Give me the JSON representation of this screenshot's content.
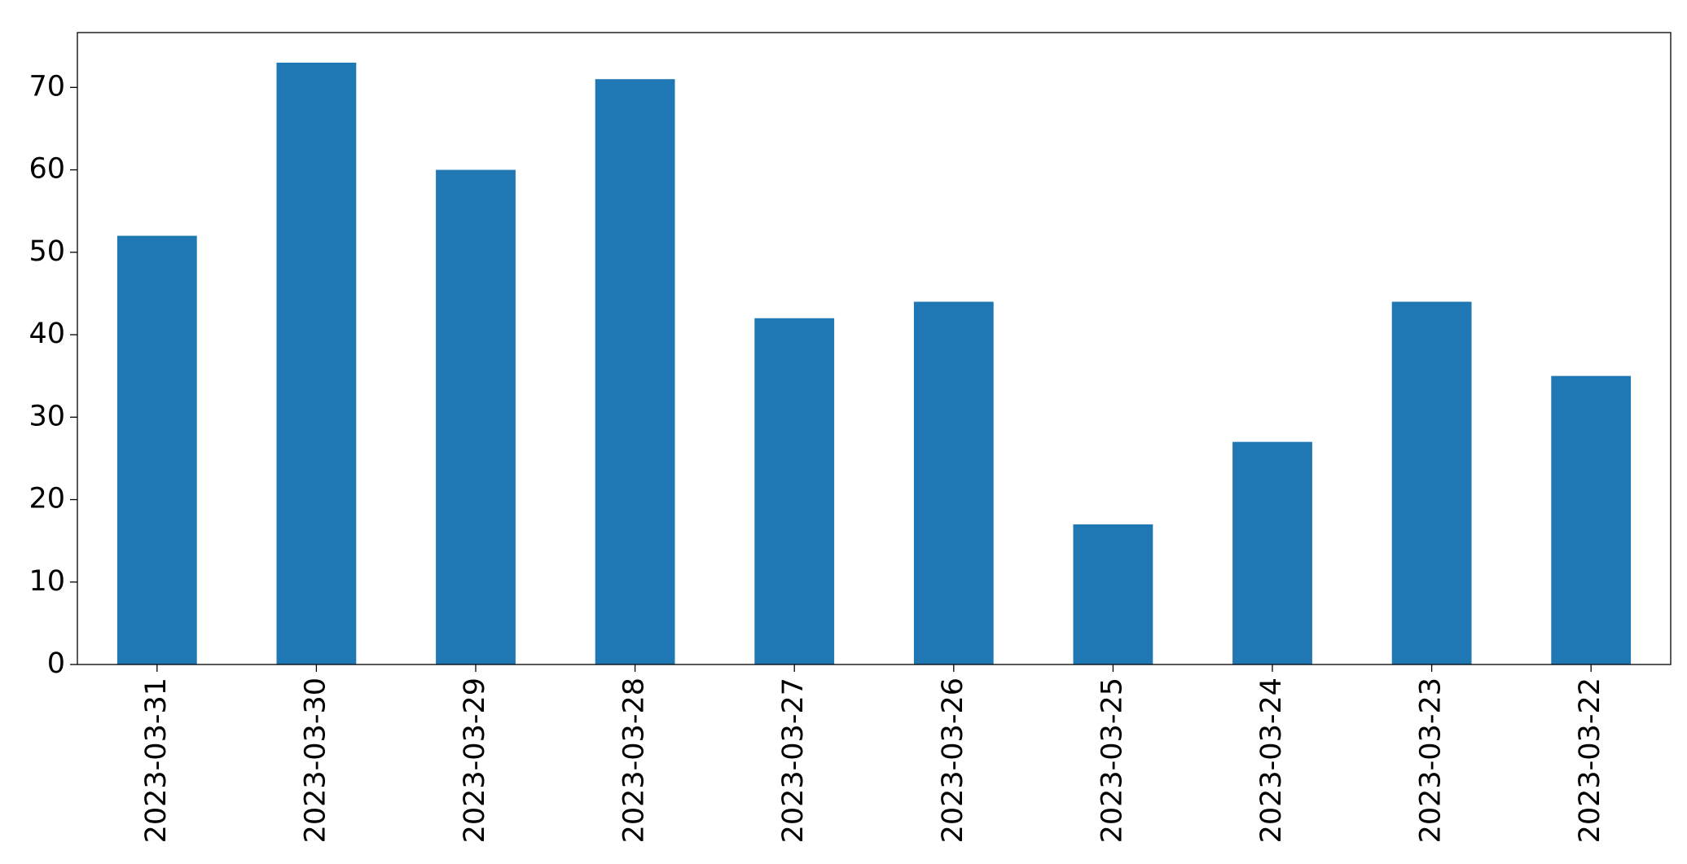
{
  "chart_data": {
    "type": "bar",
    "categories": [
      "2023-03-31",
      "2023-03-30",
      "2023-03-29",
      "2023-03-28",
      "2023-03-27",
      "2023-03-26",
      "2023-03-25",
      "2023-03-24",
      "2023-03-23",
      "2023-03-22"
    ],
    "values": [
      52,
      73,
      60,
      71,
      42,
      44,
      17,
      27,
      44,
      35
    ],
    "color": "#1f77b4",
    "ylim": [
      0,
      76.65
    ],
    "yticks": [
      0,
      10,
      20,
      30,
      40,
      50,
      60,
      70
    ],
    "grid": false
  }
}
